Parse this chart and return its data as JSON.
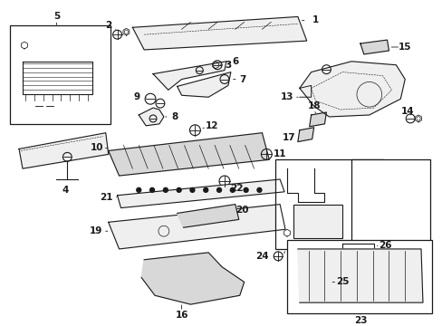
{
  "bg_color": "#ffffff",
  "line_color": "#1a1a1a",
  "figsize": [
    4.89,
    3.6
  ],
  "dpi": 100,
  "gray_fill": "#d8d8d8",
  "light_fill": "#efefef"
}
